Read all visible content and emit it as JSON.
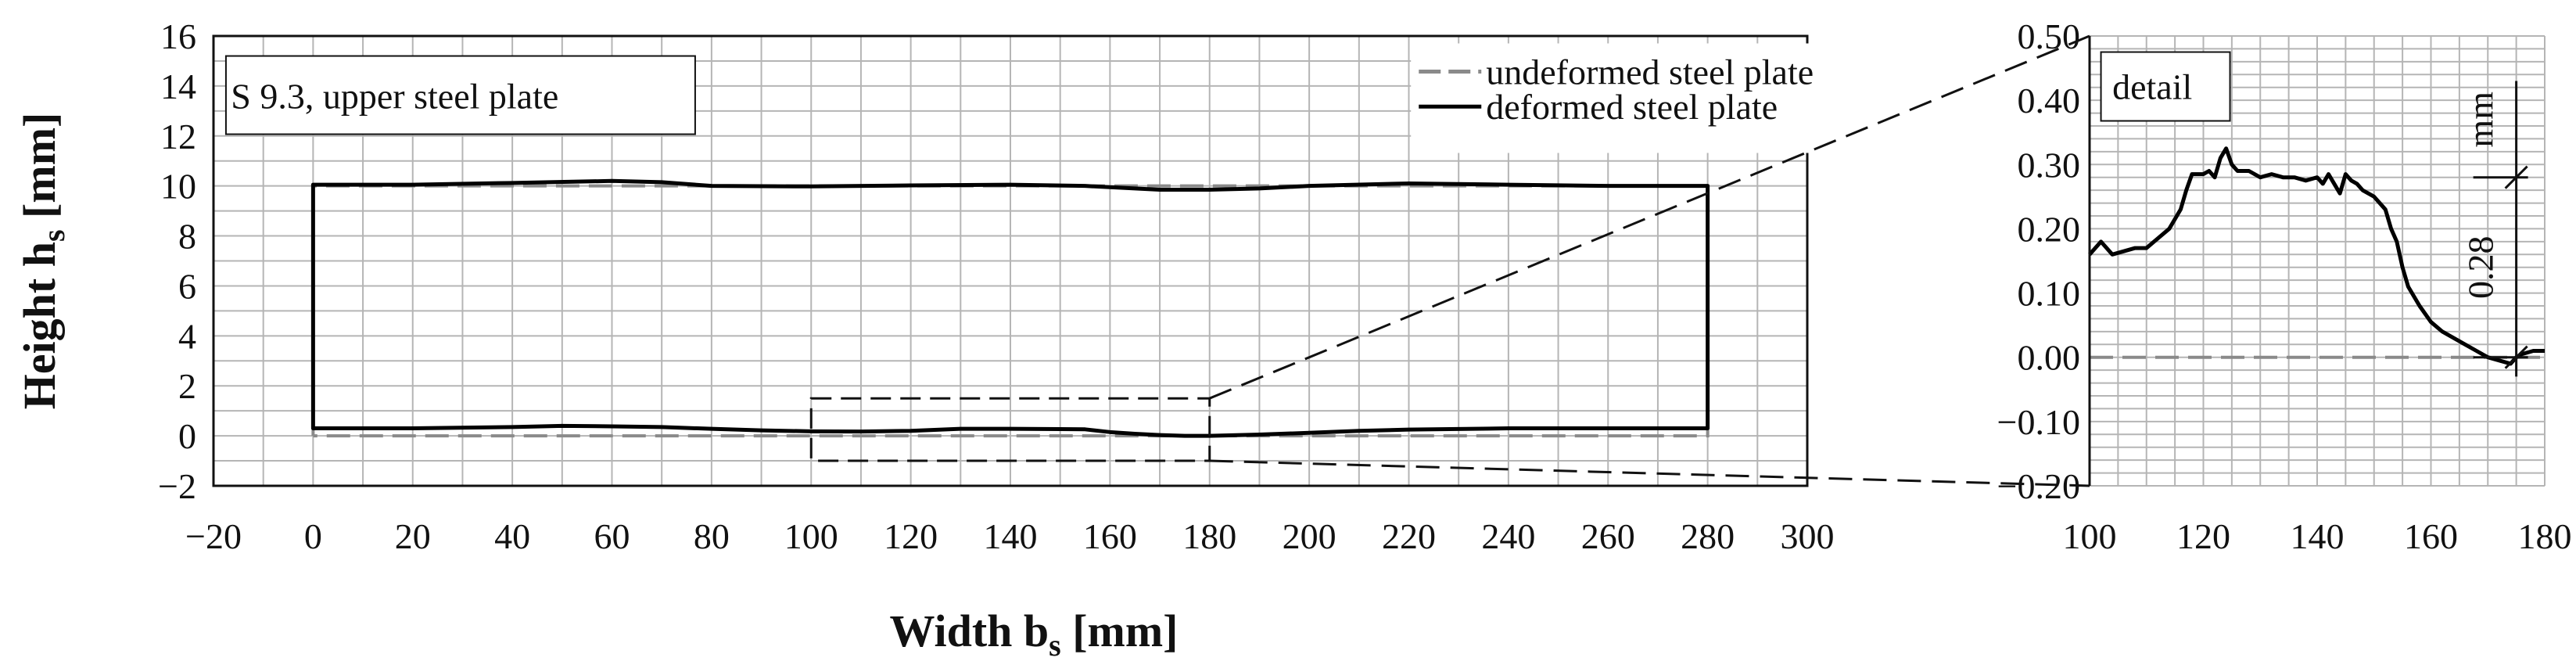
{
  "chart_data": [
    {
      "type": "line",
      "panel": "main",
      "box_label": "S 9.3, upper steel plate",
      "xlabel": "Width b",
      "xlabel_sub": "s",
      "xlabel_unit": " [mm]",
      "ylabel": "Height h",
      "ylabel_sub": "s",
      "ylabel_unit": " [mm]",
      "xlim": [
        -20,
        300
      ],
      "ylim": [
        -2,
        16
      ],
      "xticks": [
        "−20",
        "0",
        "20",
        "40",
        "60",
        "80",
        "100",
        "120",
        "140",
        "160",
        "180",
        "200",
        "220",
        "240",
        "260",
        "280",
        "300"
      ],
      "yticks": [
        "−2",
        "0",
        "2",
        "4",
        "6",
        "8",
        "10",
        "12",
        "14",
        "16"
      ],
      "grid": true,
      "legend_position": "top-right",
      "series": [
        {
          "name": "undeformed steel plate",
          "color": "#8a8a8a",
          "dash": "dashed",
          "x": [
            0,
            0,
            280,
            280,
            0
          ],
          "y": [
            0,
            10,
            10,
            0,
            0
          ]
        },
        {
          "name": "deformed steel plate",
          "color": "#000000",
          "dash": "solid",
          "top_x": [
            0,
            20,
            40,
            60,
            70,
            80,
            100,
            120,
            140,
            155,
            170,
            180,
            190,
            200,
            220,
            240,
            260,
            280
          ],
          "top_y": [
            10.05,
            10.05,
            10.12,
            10.2,
            10.15,
            10.0,
            9.98,
            10.02,
            10.05,
            10.0,
            9.85,
            9.85,
            9.9,
            10.0,
            10.1,
            10.05,
            10.0,
            10.0
          ],
          "bottom_x": [
            0,
            20,
            40,
            50,
            60,
            70,
            80,
            90,
            100,
            110,
            120,
            130,
            140,
            150,
            155,
            160,
            165,
            170,
            175,
            180,
            190,
            200,
            210,
            220,
            240,
            260,
            280
          ],
          "bottom_y": [
            0.3,
            0.3,
            0.35,
            0.4,
            0.38,
            0.35,
            0.28,
            0.22,
            0.18,
            0.17,
            0.2,
            0.28,
            0.28,
            0.27,
            0.26,
            0.15,
            0.08,
            0.03,
            0.0,
            0.0,
            0.05,
            0.12,
            0.2,
            0.25,
            0.3,
            0.3,
            0.3
          ]
        }
      ],
      "detail_box": {
        "x": [
          100,
          180
        ],
        "y": [
          -1,
          1.5
        ]
      }
    },
    {
      "type": "line",
      "panel": "detail",
      "box_label": "detail",
      "xlim": [
        100,
        180
      ],
      "ylim": [
        -0.2,
        0.5
      ],
      "xticks": [
        "100",
        "120",
        "140",
        "160",
        "180"
      ],
      "yticks": [
        "−0.20",
        "−0.10",
        "0.00",
        "0.10",
        "0.20",
        "0.30",
        "0.40",
        "0.50"
      ],
      "grid": true,
      "series": [
        {
          "name": "undeformed steel plate",
          "color": "#8a8a8a",
          "dash": "dashed",
          "x": [
            100,
            180
          ],
          "y": [
            0,
            0
          ]
        },
        {
          "name": "deformed steel plate",
          "color": "#000000",
          "dash": "solid",
          "x": [
            100,
            102,
            104,
            106,
            108,
            110,
            112,
            114,
            116,
            117,
            118,
            120,
            121,
            122,
            123,
            124,
            125,
            126,
            128,
            130,
            132,
            134,
            136,
            138,
            140,
            141,
            142,
            143,
            144,
            145,
            146,
            147,
            148,
            150,
            152,
            153,
            154,
            155,
            156,
            158,
            160,
            162,
            164,
            166,
            168,
            170,
            172,
            174,
            175,
            176,
            178,
            180
          ],
          "y": [
            0.16,
            0.18,
            0.16,
            0.165,
            0.17,
            0.17,
            0.185,
            0.2,
            0.23,
            0.26,
            0.285,
            0.285,
            0.29,
            0.28,
            0.31,
            0.325,
            0.3,
            0.29,
            0.29,
            0.28,
            0.285,
            0.28,
            0.28,
            0.275,
            0.28,
            0.27,
            0.285,
            0.27,
            0.255,
            0.285,
            0.275,
            0.27,
            0.26,
            0.25,
            0.23,
            0.2,
            0.18,
            0.14,
            0.11,
            0.08,
            0.055,
            0.04,
            0.03,
            0.02,
            0.01,
            0.0,
            -0.005,
            -0.01,
            0.0,
            0.005,
            0.01,
            0.01
          ]
        }
      ],
      "dimension": {
        "value_label": "0.28",
        "unit": "mm",
        "x": 175,
        "y_from": 0,
        "y_to": 0.28
      }
    }
  ]
}
